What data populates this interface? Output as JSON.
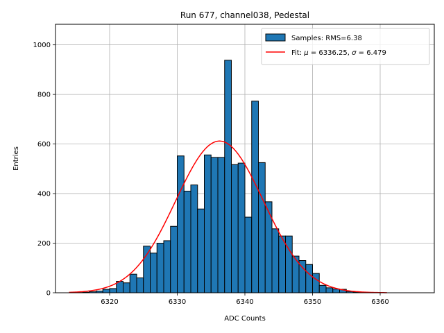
{
  "chart_data": {
    "type": "bar",
    "title": "Run 677, channel038, Pedestal",
    "xlabel": "ADC Counts",
    "ylabel": "Entries",
    "xlim": [
      6312,
      6368
    ],
    "ylim": [
      0,
      1083
    ],
    "x_ticks": [
      6320,
      6330,
      6340,
      6350,
      6360
    ],
    "y_ticks": [
      0,
      200,
      400,
      600,
      800,
      1000
    ],
    "grid": true,
    "legend_position": "top-right",
    "histogram": {
      "name": "Samples: RMS=6.38",
      "bin_width": 1,
      "color": "#1f77b4",
      "edge_color": "#000000",
      "bins": [
        {
          "x": 6315,
          "y": 1
        },
        {
          "x": 6316,
          "y": 2
        },
        {
          "x": 6317,
          "y": 4
        },
        {
          "x": 6318,
          "y": 7
        },
        {
          "x": 6319,
          "y": 14
        },
        {
          "x": 6320,
          "y": 17
        },
        {
          "x": 6321,
          "y": 46
        },
        {
          "x": 6322,
          "y": 40
        },
        {
          "x": 6323,
          "y": 75
        },
        {
          "x": 6324,
          "y": 60
        },
        {
          "x": 6325,
          "y": 188
        },
        {
          "x": 6326,
          "y": 160
        },
        {
          "x": 6327,
          "y": 200
        },
        {
          "x": 6328,
          "y": 210
        },
        {
          "x": 6329,
          "y": 268
        },
        {
          "x": 6330,
          "y": 552
        },
        {
          "x": 6331,
          "y": 410
        },
        {
          "x": 6332,
          "y": 435
        },
        {
          "x": 6333,
          "y": 338
        },
        {
          "x": 6334,
          "y": 556
        },
        {
          "x": 6335,
          "y": 546
        },
        {
          "x": 6336,
          "y": 546
        },
        {
          "x": 6337,
          "y": 938
        },
        {
          "x": 6338,
          "y": 517
        },
        {
          "x": 6339,
          "y": 523
        },
        {
          "x": 6340,
          "y": 305
        },
        {
          "x": 6341,
          "y": 773
        },
        {
          "x": 6342,
          "y": 525
        },
        {
          "x": 6343,
          "y": 367
        },
        {
          "x": 6344,
          "y": 258
        },
        {
          "x": 6345,
          "y": 229
        },
        {
          "x": 6346,
          "y": 229
        },
        {
          "x": 6347,
          "y": 148
        },
        {
          "x": 6348,
          "y": 130
        },
        {
          "x": 6349,
          "y": 114
        },
        {
          "x": 6350,
          "y": 78
        },
        {
          "x": 6351,
          "y": 30
        },
        {
          "x": 6352,
          "y": 20
        },
        {
          "x": 6353,
          "y": 15
        },
        {
          "x": 6354,
          "y": 14
        },
        {
          "x": 6355,
          "y": 5
        },
        {
          "x": 6356,
          "y": 3
        },
        {
          "x": 6357,
          "y": 2
        },
        {
          "x": 6358,
          "y": 1
        },
        {
          "x": 6359,
          "y": 1
        }
      ]
    },
    "fit": {
      "name": "Fit: μ = 6336.25, σ = 6.479",
      "label_prefix": "Fit: ",
      "mu_symbol": "μ",
      "mu_text": " = 6336.25, ",
      "sigma_symbol": "σ",
      "sigma_text": " = 6.479",
      "type": "gaussian",
      "mu": 6336.25,
      "sigma": 6.479,
      "amplitude": 612,
      "x_range": [
        6314,
        6361
      ],
      "color": "#ff0000"
    }
  }
}
